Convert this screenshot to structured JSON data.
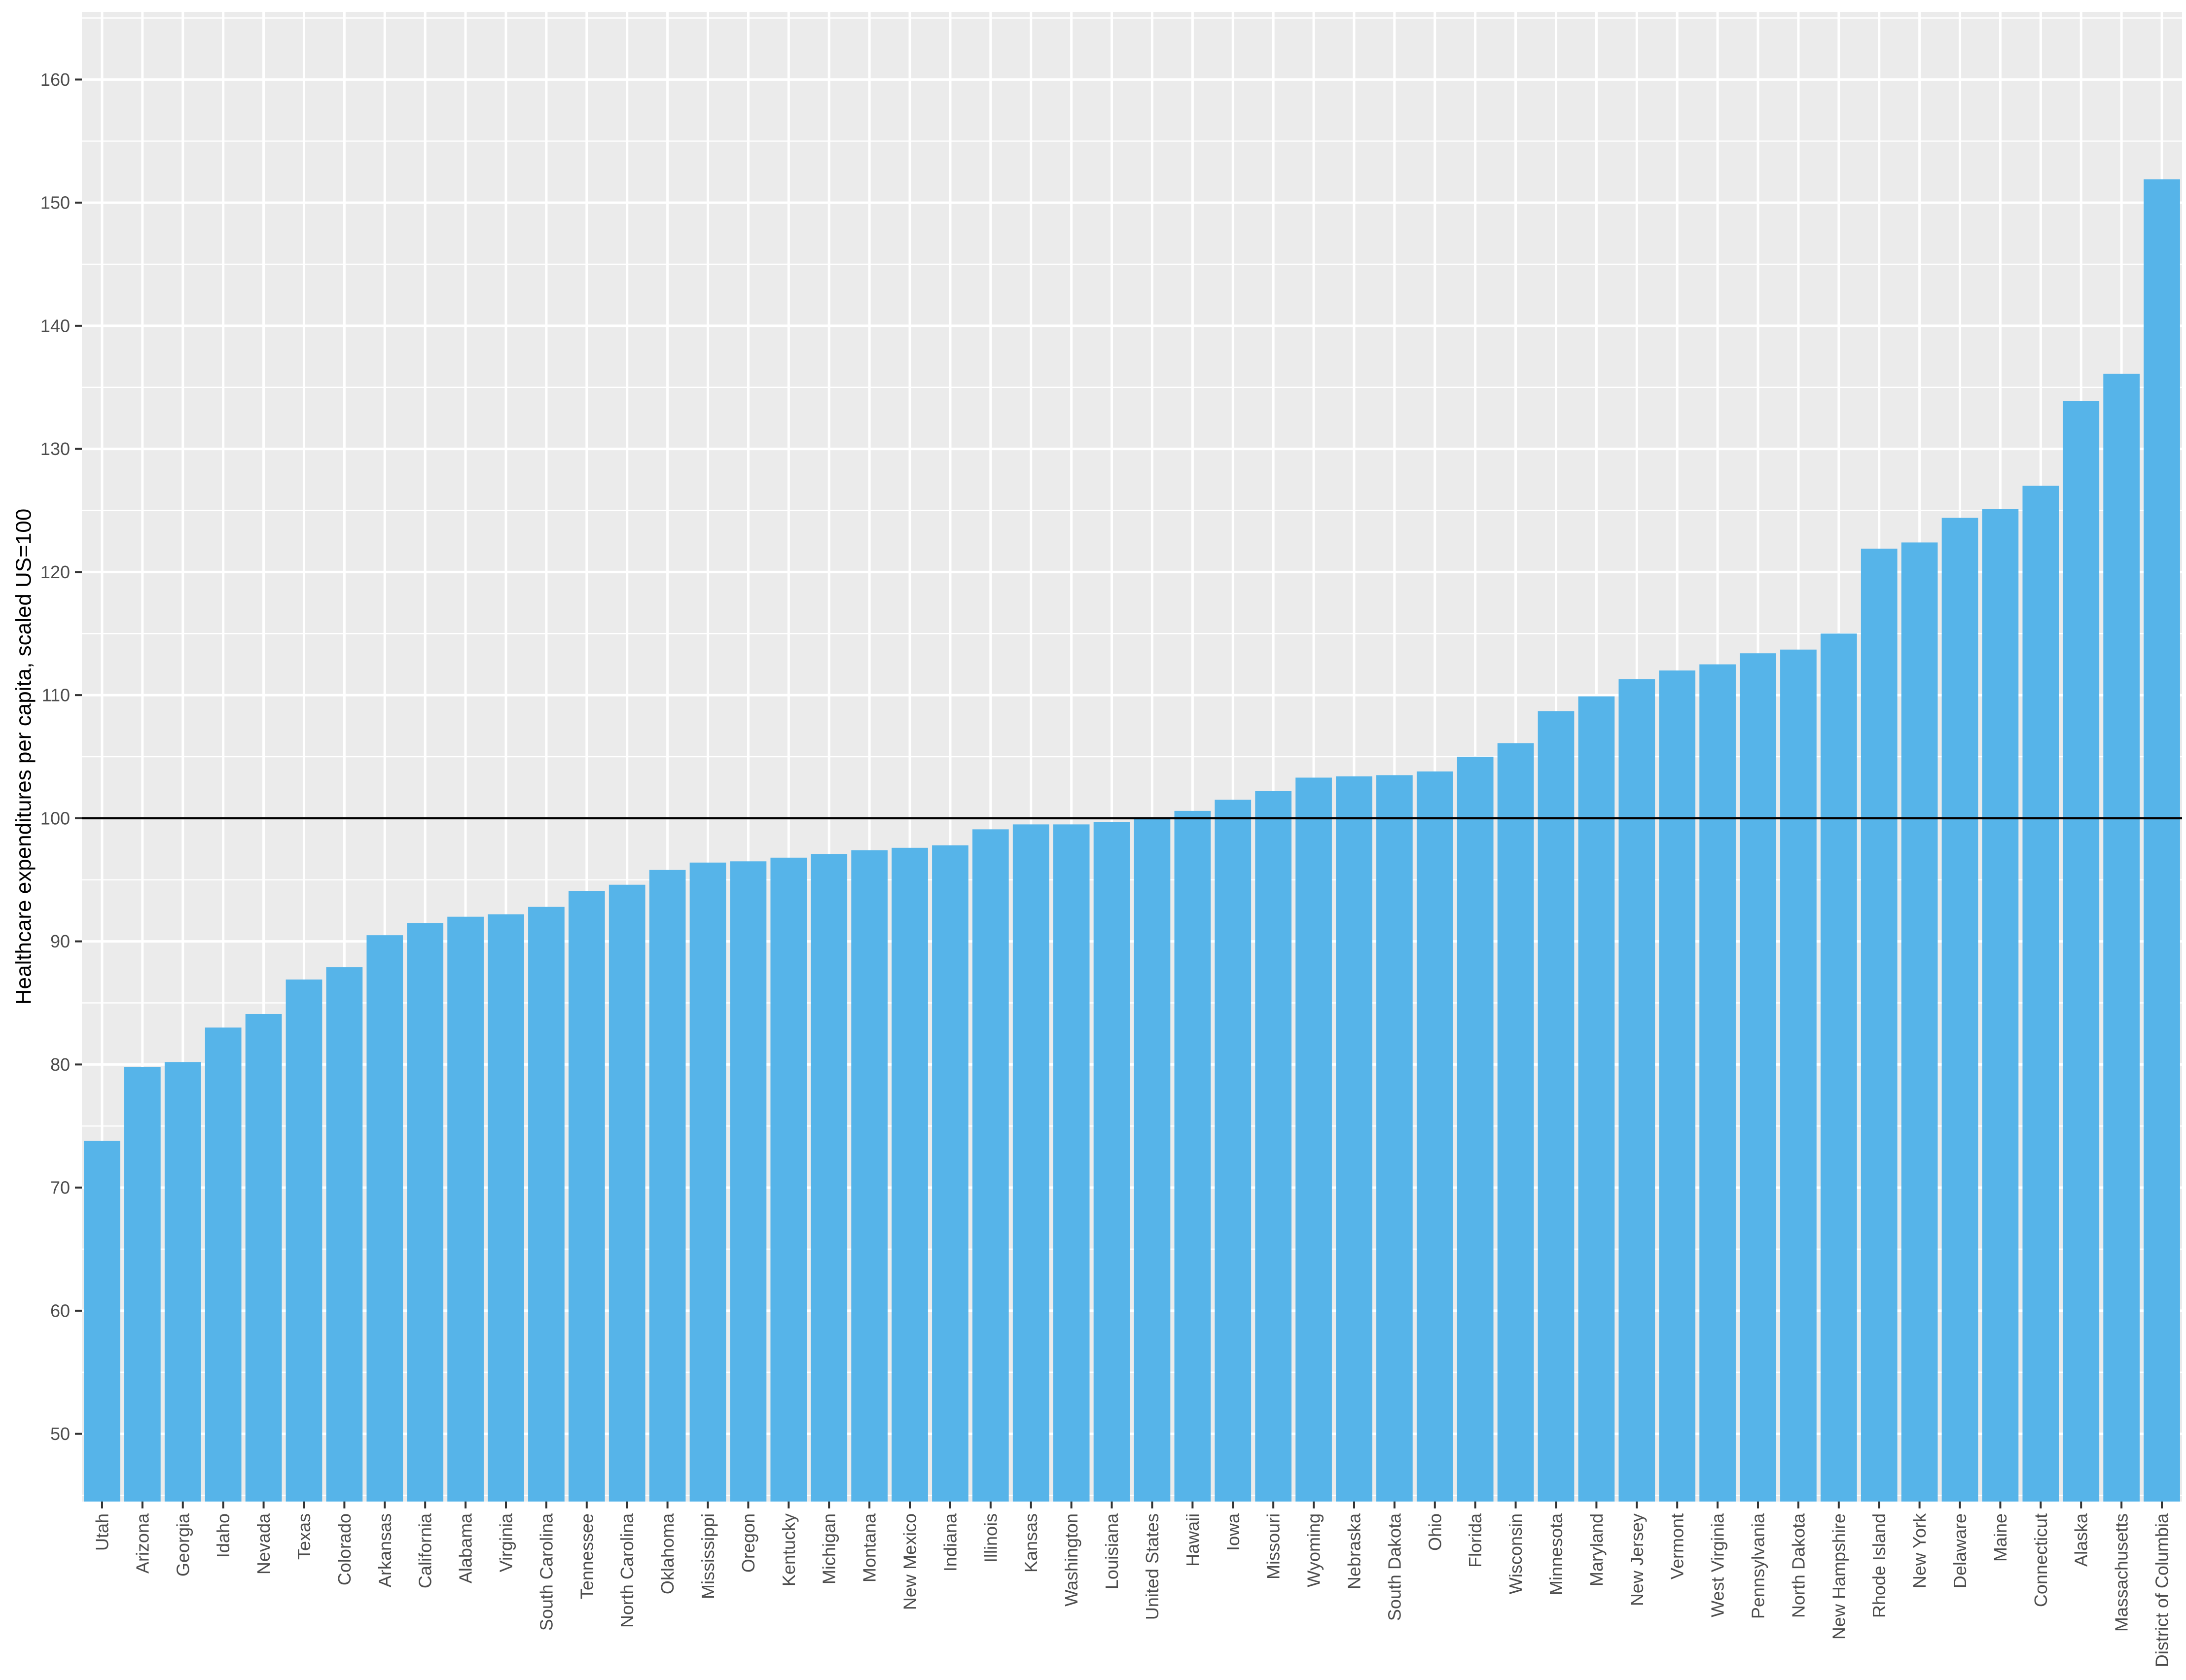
{
  "chart_data": {
    "type": "bar",
    "title": "",
    "xlabel": "",
    "ylabel": "Healthcare expenditures per capita, scaled US=100",
    "ylim": [
      44.5,
      165.5
    ],
    "yticks": [
      50,
      60,
      70,
      80,
      90,
      100,
      110,
      120,
      130,
      140,
      150,
      160
    ],
    "reference_line": 100,
    "grid": true,
    "legend": "none",
    "bar_color": "#56b4e9",
    "panel_color": "#ebebeb",
    "grid_color": "#ffffff",
    "reference_line_color": "#000000",
    "categories": [
      "Utah",
      "Arizona",
      "Georgia",
      "Idaho",
      "Nevada",
      "Texas",
      "Colorado",
      "Arkansas",
      "California",
      "Alabama",
      "Virginia",
      "South Carolina",
      "Tennessee",
      "North Carolina",
      "Oklahoma",
      "Mississippi",
      "Oregon",
      "Kentucky",
      "Michigan",
      "Montana",
      "New Mexico",
      "Indiana",
      "Illinois",
      "Kansas",
      "Washington",
      "Louisiana",
      "United States",
      "Hawaii",
      "Iowa",
      "Missouri",
      "Wyoming",
      "Nebraska",
      "South Dakota",
      "Ohio",
      "Florida",
      "Wisconsin",
      "Minnesota",
      "Maryland",
      "New Jersey",
      "Vermont",
      "West Virginia",
      "Pennsylvania",
      "North Dakota",
      "New Hampshire",
      "Rhode Island",
      "New York",
      "Delaware",
      "Maine",
      "Connecticut",
      "Alaska",
      "Massachusetts",
      "District of Columbia"
    ],
    "values": [
      73.8,
      79.8,
      80.2,
      83.0,
      84.1,
      86.9,
      87.9,
      90.5,
      91.5,
      92.0,
      92.2,
      92.8,
      94.1,
      94.6,
      95.8,
      96.4,
      96.5,
      96.8,
      97.1,
      97.4,
      97.6,
      97.8,
      99.1,
      99.5,
      99.5,
      99.7,
      100.0,
      100.6,
      101.5,
      102.2,
      103.3,
      103.4,
      103.5,
      103.8,
      105.0,
      106.1,
      108.7,
      109.9,
      111.3,
      112.0,
      112.5,
      113.4,
      113.7,
      115.0,
      121.9,
      122.4,
      124.4,
      125.1,
      127.0,
      133.9,
      136.1,
      151.9
    ]
  }
}
